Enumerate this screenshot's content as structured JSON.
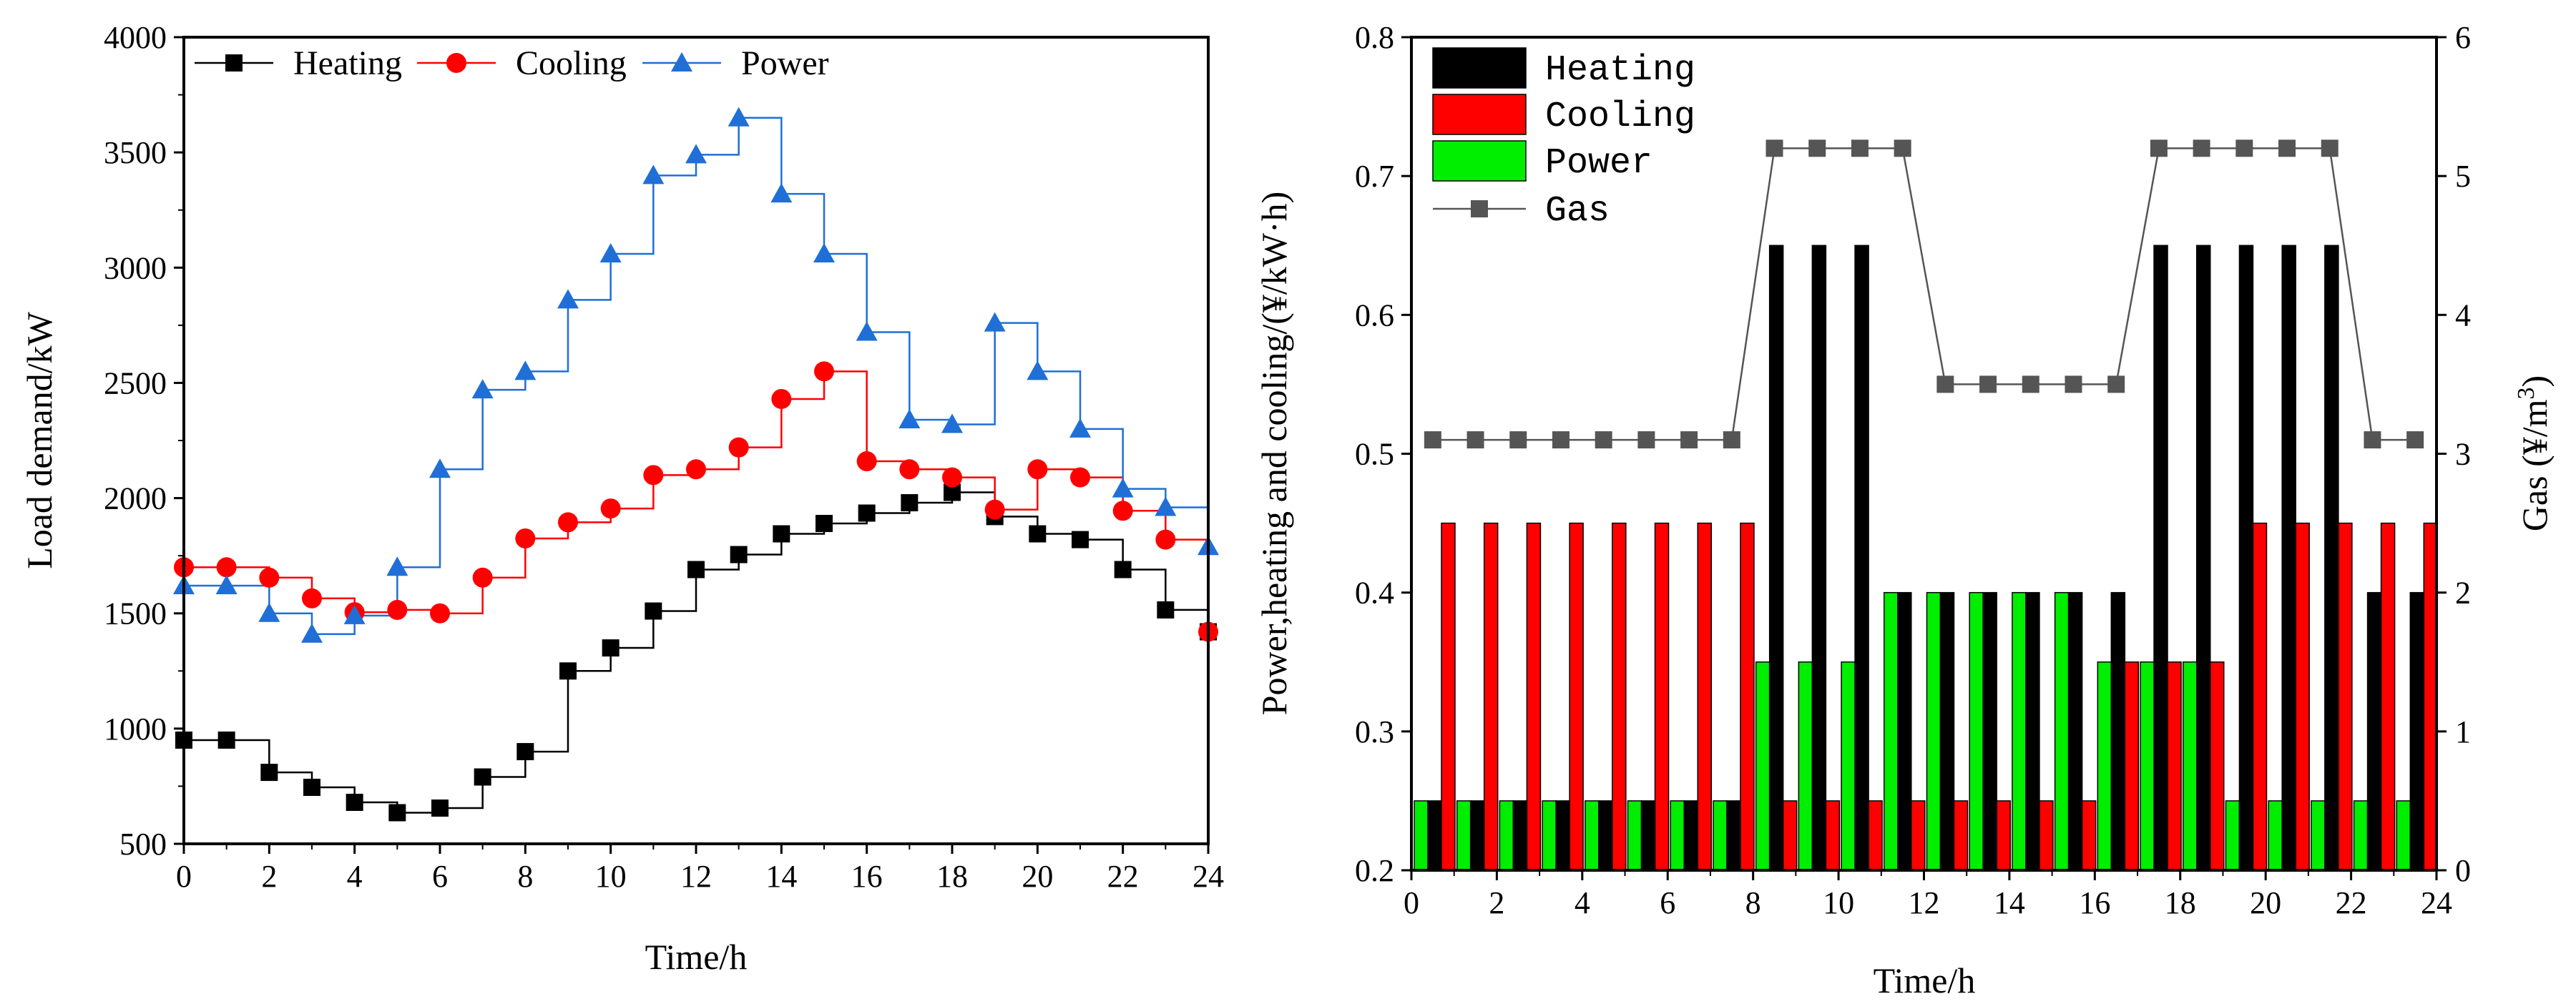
{
  "chart_data": [
    {
      "type": "line",
      "step": true,
      "x": [
        0,
        1,
        2,
        3,
        4,
        5,
        6,
        7,
        8,
        9,
        10,
        11,
        12,
        13,
        14,
        15,
        16,
        17,
        18,
        19,
        20,
        21,
        22,
        23,
        24
      ],
      "series": [
        {
          "name": "Heating",
          "color": "#000000",
          "marker": "square",
          "values": [
            950,
            950,
            810,
            745,
            680,
            635,
            655,
            790,
            900,
            1250,
            1350,
            1510,
            1690,
            1755,
            1845,
            1890,
            1935,
            1980,
            2025,
            1920,
            1845,
            1820,
            1690,
            1515,
            1420
          ]
        },
        {
          "name": "Cooling",
          "color": "#ff0000",
          "marker": "circle",
          "values": [
            1700,
            1700,
            1655,
            1565,
            1505,
            1515,
            1500,
            1655,
            1825,
            1895,
            1955,
            2100,
            2125,
            2220,
            2430,
            2550,
            2160,
            2125,
            2090,
            1950,
            2125,
            2090,
            1945,
            1820,
            1420
          ]
        },
        {
          "name": "Power",
          "color": "#1f6fd6",
          "marker": "triangle",
          "values": [
            1620,
            1620,
            1500,
            1410,
            1490,
            1700,
            2125,
            2470,
            2550,
            2860,
            3060,
            3400,
            3490,
            3650,
            3320,
            3060,
            2720,
            2340,
            2320,
            2760,
            2550,
            2300,
            2040,
            1960,
            1790
          ]
        }
      ],
      "xlabel": "Time/h",
      "ylabel": "Load demand/kW",
      "xlim": [
        0,
        24
      ],
      "ylim": [
        500,
        4000
      ],
      "xticks": [
        "0",
        "2",
        "4",
        "6",
        "8",
        "10",
        "12",
        "14",
        "16",
        "18",
        "20",
        "22",
        "24"
      ],
      "yticks": [
        "500",
        "1000",
        "1500",
        "2000",
        "2500",
        "3000",
        "3500",
        "4000"
      ],
      "legend": {
        "position": "top",
        "labels": [
          "Heating",
          "Cooling",
          "Power"
        ]
      }
    },
    {
      "type": "bar",
      "x": [
        0,
        1,
        2,
        3,
        4,
        5,
        6,
        7,
        8,
        9,
        10,
        11,
        12,
        13,
        14,
        15,
        16,
        17,
        18,
        19,
        20,
        21,
        22,
        23
      ],
      "series": [
        {
          "name": "Heating",
          "color": "#000000",
          "values": [
            0.25,
            0.25,
            0.25,
            0.25,
            0.25,
            0.25,
            0.25,
            0.25,
            0.65,
            0.65,
            0.65,
            0.4,
            0.4,
            0.4,
            0.4,
            0.4,
            0.4,
            0.65,
            0.65,
            0.65,
            0.65,
            0.65,
            0.4,
            0.4
          ]
        },
        {
          "name": "Cooling",
          "color": "#ff0000",
          "values": [
            0.45,
            0.45,
            0.45,
            0.45,
            0.45,
            0.45,
            0.45,
            0.45,
            0.25,
            0.25,
            0.25,
            0.25,
            0.25,
            0.25,
            0.25,
            0.25,
            0.35,
            0.35,
            0.35,
            0.45,
            0.45,
            0.45,
            0.45,
            0.45
          ]
        },
        {
          "name": "Power",
          "color": "#00ee00",
          "values": [
            0.25,
            0.25,
            0.25,
            0.25,
            0.25,
            0.25,
            0.25,
            0.25,
            0.35,
            0.35,
            0.35,
            0.4,
            0.4,
            0.4,
            0.4,
            0.4,
            0.35,
            0.35,
            0.35,
            0.25,
            0.25,
            0.25,
            0.25,
            0.25
          ]
        },
        {
          "name": "Gas",
          "color": "#555555",
          "type": "line",
          "axis": "right",
          "marker": "square",
          "values": [
            3.1,
            3.1,
            3.1,
            3.1,
            3.1,
            3.1,
            3.1,
            3.1,
            5.2,
            5.2,
            5.2,
            5.2,
            3.5,
            3.5,
            3.5,
            3.5,
            3.5,
            5.2,
            5.2,
            5.2,
            5.2,
            5.2,
            3.1,
            3.1
          ]
        }
      ],
      "xlabel": "Time/h",
      "ylabel": "Power,heating and cooling/(¥/kW·h)",
      "ylabel_right": "Gas (¥/m",
      "ylabel_right_sup": "3",
      "ylabel_right_end": ")",
      "xlim": [
        0,
        24
      ],
      "ylim": [
        0.2,
        0.8
      ],
      "ylim_right": [
        0,
        6
      ],
      "xticks": [
        "0",
        "2",
        "4",
        "6",
        "8",
        "10",
        "12",
        "14",
        "16",
        "18",
        "20",
        "22",
        "24"
      ],
      "yticks": [
        "0.2",
        "0.3",
        "0.4",
        "0.5",
        "0.6",
        "0.7",
        "0.8"
      ],
      "yticks_right": [
        "0",
        "1",
        "2",
        "3",
        "4",
        "5",
        "6"
      ],
      "legend": {
        "position": "top-left",
        "labels": [
          "Heating",
          "Cooling",
          "Power",
          "Gas"
        ]
      }
    }
  ]
}
